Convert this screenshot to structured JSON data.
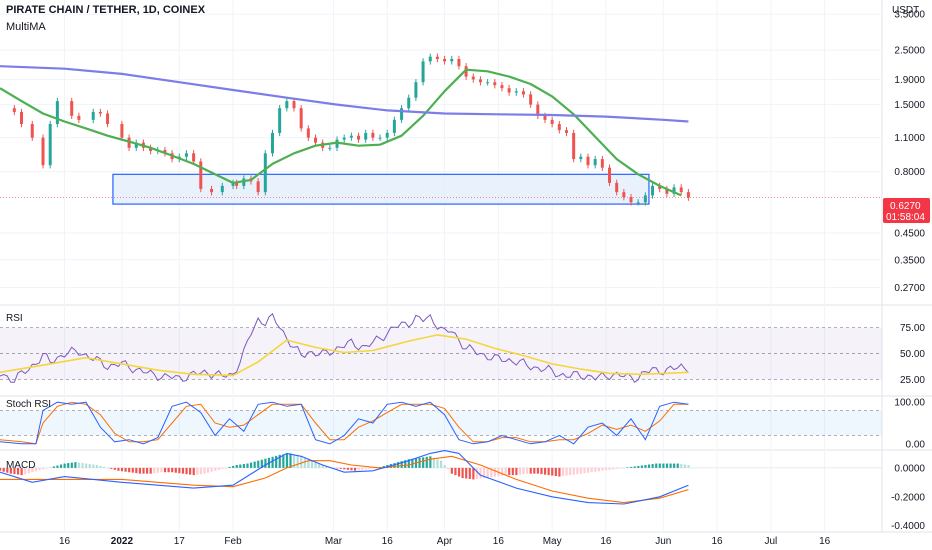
{
  "header": {
    "symbol_line": "PIRATE CHAIN / TETHER, 1D, COINEX",
    "indicator": "MultiMA"
  },
  "price_axis": {
    "unit": "USDT",
    "ticks": [
      "3.5000",
      "2.5000",
      "1.9000",
      "1.5000",
      "1.1000",
      "0.8000",
      "0.4500",
      "0.3500",
      "0.2700"
    ],
    "tick_values": [
      3.5,
      2.5,
      1.9,
      1.5,
      1.1,
      0.8,
      0.45,
      0.35,
      0.27
    ],
    "current_price": "0.6270",
    "countdown": "01:58:04"
  },
  "panels": {
    "rsi": {
      "label": "RSI",
      "ticks": [
        "75.00",
        "50.00",
        "25.00"
      ],
      "tick_values": [
        75,
        50,
        25
      ]
    },
    "stoch": {
      "label": "Stoch RSI",
      "ticks": [
        "100.00",
        "0.00"
      ],
      "tick_values": [
        100,
        0
      ]
    },
    "macd": {
      "label": "MACD",
      "ticks": [
        "0.0000",
        "-0.2000",
        "-0.4000"
      ],
      "tick_values": [
        0,
        -0.2,
        -0.4
      ]
    }
  },
  "time_axis": {
    "labels": [
      "16",
      "2022",
      "17",
      "Feb",
      "Mar",
      "16",
      "Apr",
      "16",
      "May",
      "16",
      "Jun",
      "16",
      "Jul",
      "16"
    ],
    "label_days": [
      -16,
      0,
      16,
      31,
      59,
      74,
      90,
      105,
      120,
      135,
      151,
      166,
      181,
      196
    ]
  },
  "colors": {
    "up": "#26a69a",
    "down": "#ef5350",
    "ma_fast": "#4caf50",
    "ma_slow": "#7b7ee8",
    "rsi": "#7e57c2",
    "rsi_ma": "#f5d63b",
    "macd": "#2962ff",
    "signal": "#ff6d00",
    "zone_border": "#2962ff",
    "price_tag": "#f23645"
  },
  "chart_data": [
    {
      "type": "candlestick",
      "title": "PIRATE CHAIN / TETHER, 1D, COINEX",
      "ylabel": "USDT",
      "scale": "log",
      "ylim": [
        0.24,
        4.0
      ],
      "x_unit": "days from 2022-01-01",
      "xlim": [
        -34,
        212
      ],
      "closes": {
        "x": [
          -34,
          -30,
          -28,
          -25,
          -22,
          -20,
          -18,
          -14,
          -12,
          -8,
          -6,
          -4,
          0,
          2,
          4,
          6,
          8,
          10,
          12,
          14,
          16,
          18,
          20,
          22,
          25,
          28,
          31,
          32,
          34,
          36,
          38,
          40,
          42,
          44,
          46,
          48,
          50,
          52,
          54,
          56,
          58,
          60,
          62,
          64,
          66,
          68,
          70,
          72,
          74,
          76,
          78,
          80,
          82,
          84,
          86,
          88,
          90,
          92,
          94,
          96,
          98,
          100,
          102,
          104,
          106,
          108,
          110,
          112,
          114,
          116,
          118,
          120,
          122,
          124,
          126,
          128,
          130,
          132,
          134,
          136,
          138,
          140,
          142,
          144,
          146,
          148,
          150,
          152,
          154,
          156,
          158
        ],
        "y": [
          1.45,
          1.4,
          1.25,
          1.1,
          0.85,
          1.25,
          1.55,
          1.35,
          1.3,
          1.4,
          1.38,
          1.25,
          1.1,
          1.0,
          1.05,
          1.0,
          0.97,
          0.98,
          0.95,
          0.9,
          0.92,
          0.95,
          0.88,
          0.68,
          0.66,
          0.7,
          0.72,
          0.7,
          0.75,
          0.73,
          0.66,
          0.95,
          1.15,
          1.45,
          1.55,
          1.45,
          1.2,
          1.1,
          1.05,
          1.0,
          1.0,
          1.08,
          1.1,
          1.12,
          1.08,
          1.15,
          1.1,
          1.1,
          1.15,
          1.3,
          1.45,
          1.6,
          1.85,
          2.25,
          2.35,
          2.3,
          2.25,
          2.3,
          2.15,
          1.95,
          1.9,
          1.85,
          1.85,
          1.8,
          1.75,
          1.68,
          1.7,
          1.65,
          1.5,
          1.35,
          1.3,
          1.25,
          1.18,
          1.15,
          0.9,
          0.92,
          0.85,
          0.9,
          0.83,
          0.72,
          0.66,
          0.63,
          0.6,
          0.6,
          0.64,
          0.7,
          0.68,
          0.65,
          0.69,
          0.66,
          0.627
        ]
      },
      "series": [
        {
          "name": "MA short",
          "x": [
            -34,
            -28,
            -22,
            -16,
            -10,
            -4,
            2,
            8,
            14,
            20,
            26,
            31,
            36,
            42,
            48,
            54,
            60,
            66,
            72,
            78,
            84,
            90,
            96,
            102,
            108,
            114,
            120,
            126,
            132,
            138,
            144,
            150,
            156
          ],
          "y": [
            1.75,
            1.55,
            1.38,
            1.28,
            1.2,
            1.12,
            1.06,
            1.0,
            0.93,
            0.86,
            0.78,
            0.72,
            0.74,
            0.86,
            0.95,
            1.02,
            1.05,
            1.02,
            1.03,
            1.12,
            1.35,
            1.7,
            2.08,
            2.05,
            1.95,
            1.82,
            1.62,
            1.37,
            1.11,
            0.9,
            0.78,
            0.7,
            0.64
          ]
        },
        {
          "name": "MA long",
          "x": [
            -34,
            -16,
            0,
            16,
            31,
            46,
            60,
            74,
            90,
            105,
            120,
            135,
            151,
            158
          ],
          "y": [
            2.15,
            2.1,
            2.0,
            1.85,
            1.72,
            1.6,
            1.5,
            1.42,
            1.38,
            1.37,
            1.36,
            1.34,
            1.3,
            1.28
          ]
        }
      ],
      "annotations": {
        "support_zone": [
          0.59,
          0.78
        ]
      }
    },
    {
      "type": "line",
      "title": "RSI",
      "ylim": [
        12,
        92
      ],
      "x_unit": "days from 2022-01-01",
      "series": [
        {
          "name": "RSI",
          "x": [
            -34,
            -30,
            -26,
            -22,
            -20,
            -16,
            -12,
            -8,
            -4,
            0,
            4,
            8,
            12,
            16,
            20,
            24,
            28,
            31,
            34,
            36,
            38,
            40,
            42,
            44,
            46,
            48,
            50,
            52,
            54,
            56,
            60,
            64,
            68,
            72,
            76,
            80,
            82,
            84,
            86,
            88,
            90,
            92,
            96,
            100,
            104,
            108,
            112,
            116,
            120,
            124,
            128,
            132,
            136,
            140,
            144,
            148,
            152,
            156,
            158
          ],
          "y": [
            30,
            25,
            35,
            48,
            42,
            50,
            52,
            45,
            38,
            40,
            35,
            30,
            28,
            26,
            30,
            32,
            28,
            30,
            50,
            70,
            83,
            80,
            84,
            77,
            65,
            55,
            48,
            52,
            50,
            49,
            55,
            60,
            56,
            65,
            75,
            80,
            84,
            82,
            85,
            78,
            70,
            72,
            55,
            50,
            45,
            44,
            40,
            36,
            33,
            28,
            30,
            26,
            30,
            28,
            27,
            35,
            33,
            38,
            36
          ]
        },
        {
          "name": "RSI MA",
          "x": [
            -34,
            -20,
            -10,
            0,
            10,
            20,
            31,
            38,
            46,
            54,
            62,
            70,
            80,
            88,
            96,
            104,
            112,
            120,
            128,
            136,
            144,
            152,
            158
          ],
          "y": [
            32,
            40,
            46,
            40,
            34,
            30,
            29,
            42,
            63,
            56,
            51,
            53,
            62,
            68,
            64,
            55,
            48,
            40,
            35,
            31,
            30,
            31,
            32
          ]
        }
      ]
    },
    {
      "type": "line",
      "title": "Stoch RSI",
      "ylim": [
        -10,
        110
      ],
      "x_unit": "days from 2022-01-01",
      "series": [
        {
          "name": "K",
          "x": [
            -34,
            -28,
            -24,
            -22,
            -18,
            -14,
            -10,
            -6,
            -2,
            2,
            6,
            10,
            14,
            18,
            22,
            26,
            30,
            34,
            38,
            42,
            46,
            50,
            54,
            58,
            62,
            66,
            70,
            74,
            78,
            82,
            86,
            90,
            94,
            98,
            102,
            106,
            110,
            114,
            118,
            122,
            126,
            130,
            134,
            138,
            142,
            146,
            150,
            154,
            158
          ],
          "y": [
            5,
            0,
            0,
            80,
            100,
            95,
            100,
            40,
            5,
            10,
            0,
            15,
            90,
            100,
            75,
            20,
            60,
            30,
            95,
            100,
            90,
            95,
            10,
            0,
            20,
            60,
            50,
            95,
            100,
            90,
            100,
            70,
            10,
            0,
            5,
            20,
            10,
            0,
            5,
            20,
            0,
            40,
            50,
            20,
            60,
            10,
            90,
            100,
            95
          ]
        },
        {
          "name": "D",
          "x": [
            -34,
            -28,
            -24,
            -22,
            -18,
            -14,
            -10,
            -6,
            -2,
            2,
            6,
            10,
            14,
            18,
            22,
            26,
            30,
            34,
            38,
            42,
            46,
            50,
            54,
            58,
            62,
            66,
            70,
            74,
            78,
            82,
            86,
            90,
            94,
            98,
            102,
            106,
            110,
            114,
            118,
            122,
            126,
            130,
            134,
            138,
            142,
            146,
            150,
            154,
            158
          ],
          "y": [
            10,
            5,
            0,
            50,
            90,
            100,
            95,
            70,
            25,
            5,
            5,
            10,
            50,
            90,
            95,
            50,
            40,
            45,
            70,
            95,
            95,
            95,
            50,
            10,
            10,
            40,
            55,
            75,
            95,
            95,
            95,
            85,
            40,
            5,
            5,
            15,
            15,
            5,
            5,
            10,
            10,
            25,
            45,
            35,
            45,
            30,
            55,
            95,
            95
          ]
        }
      ]
    },
    {
      "type": "bar",
      "title": "MACD",
      "ylim": [
        -0.43,
        0.11
      ],
      "x_unit": "days from 2022-01-01",
      "histogram": {
        "x": [
          -34,
          -31,
          -28,
          -25,
          -22,
          -19,
          -16,
          -13,
          -10,
          -7,
          -4,
          -1,
          2,
          5,
          8,
          11,
          14,
          17,
          20,
          23,
          26,
          29,
          32,
          35,
          38,
          41,
          44,
          47,
          50,
          53,
          56,
          59,
          62,
          65,
          68,
          71,
          74,
          77,
          80,
          83,
          86,
          89,
          92,
          95,
          98,
          101,
          104,
          107,
          110,
          113,
          116,
          119,
          122,
          125,
          128,
          131,
          134,
          137,
          140,
          143,
          146,
          149,
          152,
          155,
          158
        ],
        "y": [
          -0.02,
          -0.04,
          -0.05,
          -0.03,
          -0.01,
          0.01,
          0.03,
          0.04,
          0.03,
          0.02,
          0.0,
          -0.02,
          -0.03,
          -0.04,
          -0.04,
          -0.03,
          -0.03,
          -0.04,
          -0.05,
          -0.04,
          -0.02,
          0.0,
          0.02,
          0.03,
          0.05,
          0.07,
          0.09,
          0.1,
          0.08,
          0.05,
          0.02,
          0.0,
          -0.01,
          -0.02,
          -0.01,
          0.0,
          0.02,
          0.04,
          0.06,
          0.07,
          0.08,
          0.05,
          -0.04,
          -0.07,
          -0.08,
          -0.07,
          -0.06,
          -0.05,
          -0.05,
          -0.04,
          -0.04,
          -0.05,
          -0.06,
          -0.05,
          -0.04,
          -0.03,
          -0.02,
          -0.01,
          0.0,
          0.01,
          0.02,
          0.03,
          0.03,
          0.03,
          0.02
        ]
      },
      "series": [
        {
          "name": "MACD",
          "x": [
            -34,
            -25,
            -16,
            -8,
            0,
            10,
            20,
            31,
            40,
            46,
            50,
            56,
            62,
            70,
            80,
            86,
            90,
            94,
            100,
            110,
            120,
            130,
            140,
            150,
            158
          ],
          "y": [
            -0.03,
            -0.1,
            -0.06,
            -0.08,
            -0.1,
            -0.12,
            -0.14,
            -0.12,
            0.02,
            0.1,
            0.08,
            0.02,
            -0.03,
            -0.02,
            0.05,
            0.1,
            0.12,
            0.1,
            -0.05,
            -0.14,
            -0.2,
            -0.24,
            -0.25,
            -0.2,
            -0.12
          ]
        },
        {
          "name": "Signal",
          "x": [
            -34,
            -25,
            -16,
            -8,
            0,
            10,
            20,
            31,
            40,
            46,
            52,
            58,
            64,
            72,
            80,
            86,
            92,
            100,
            110,
            120,
            130,
            140,
            150,
            158
          ],
          "y": [
            -0.08,
            -0.08,
            -0.08,
            -0.08,
            -0.08,
            -0.1,
            -0.12,
            -0.13,
            -0.07,
            0.0,
            0.05,
            0.05,
            0.02,
            0.0,
            0.02,
            0.06,
            0.08,
            0.02,
            -0.08,
            -0.16,
            -0.21,
            -0.24,
            -0.21,
            -0.15
          ]
        }
      ]
    }
  ]
}
